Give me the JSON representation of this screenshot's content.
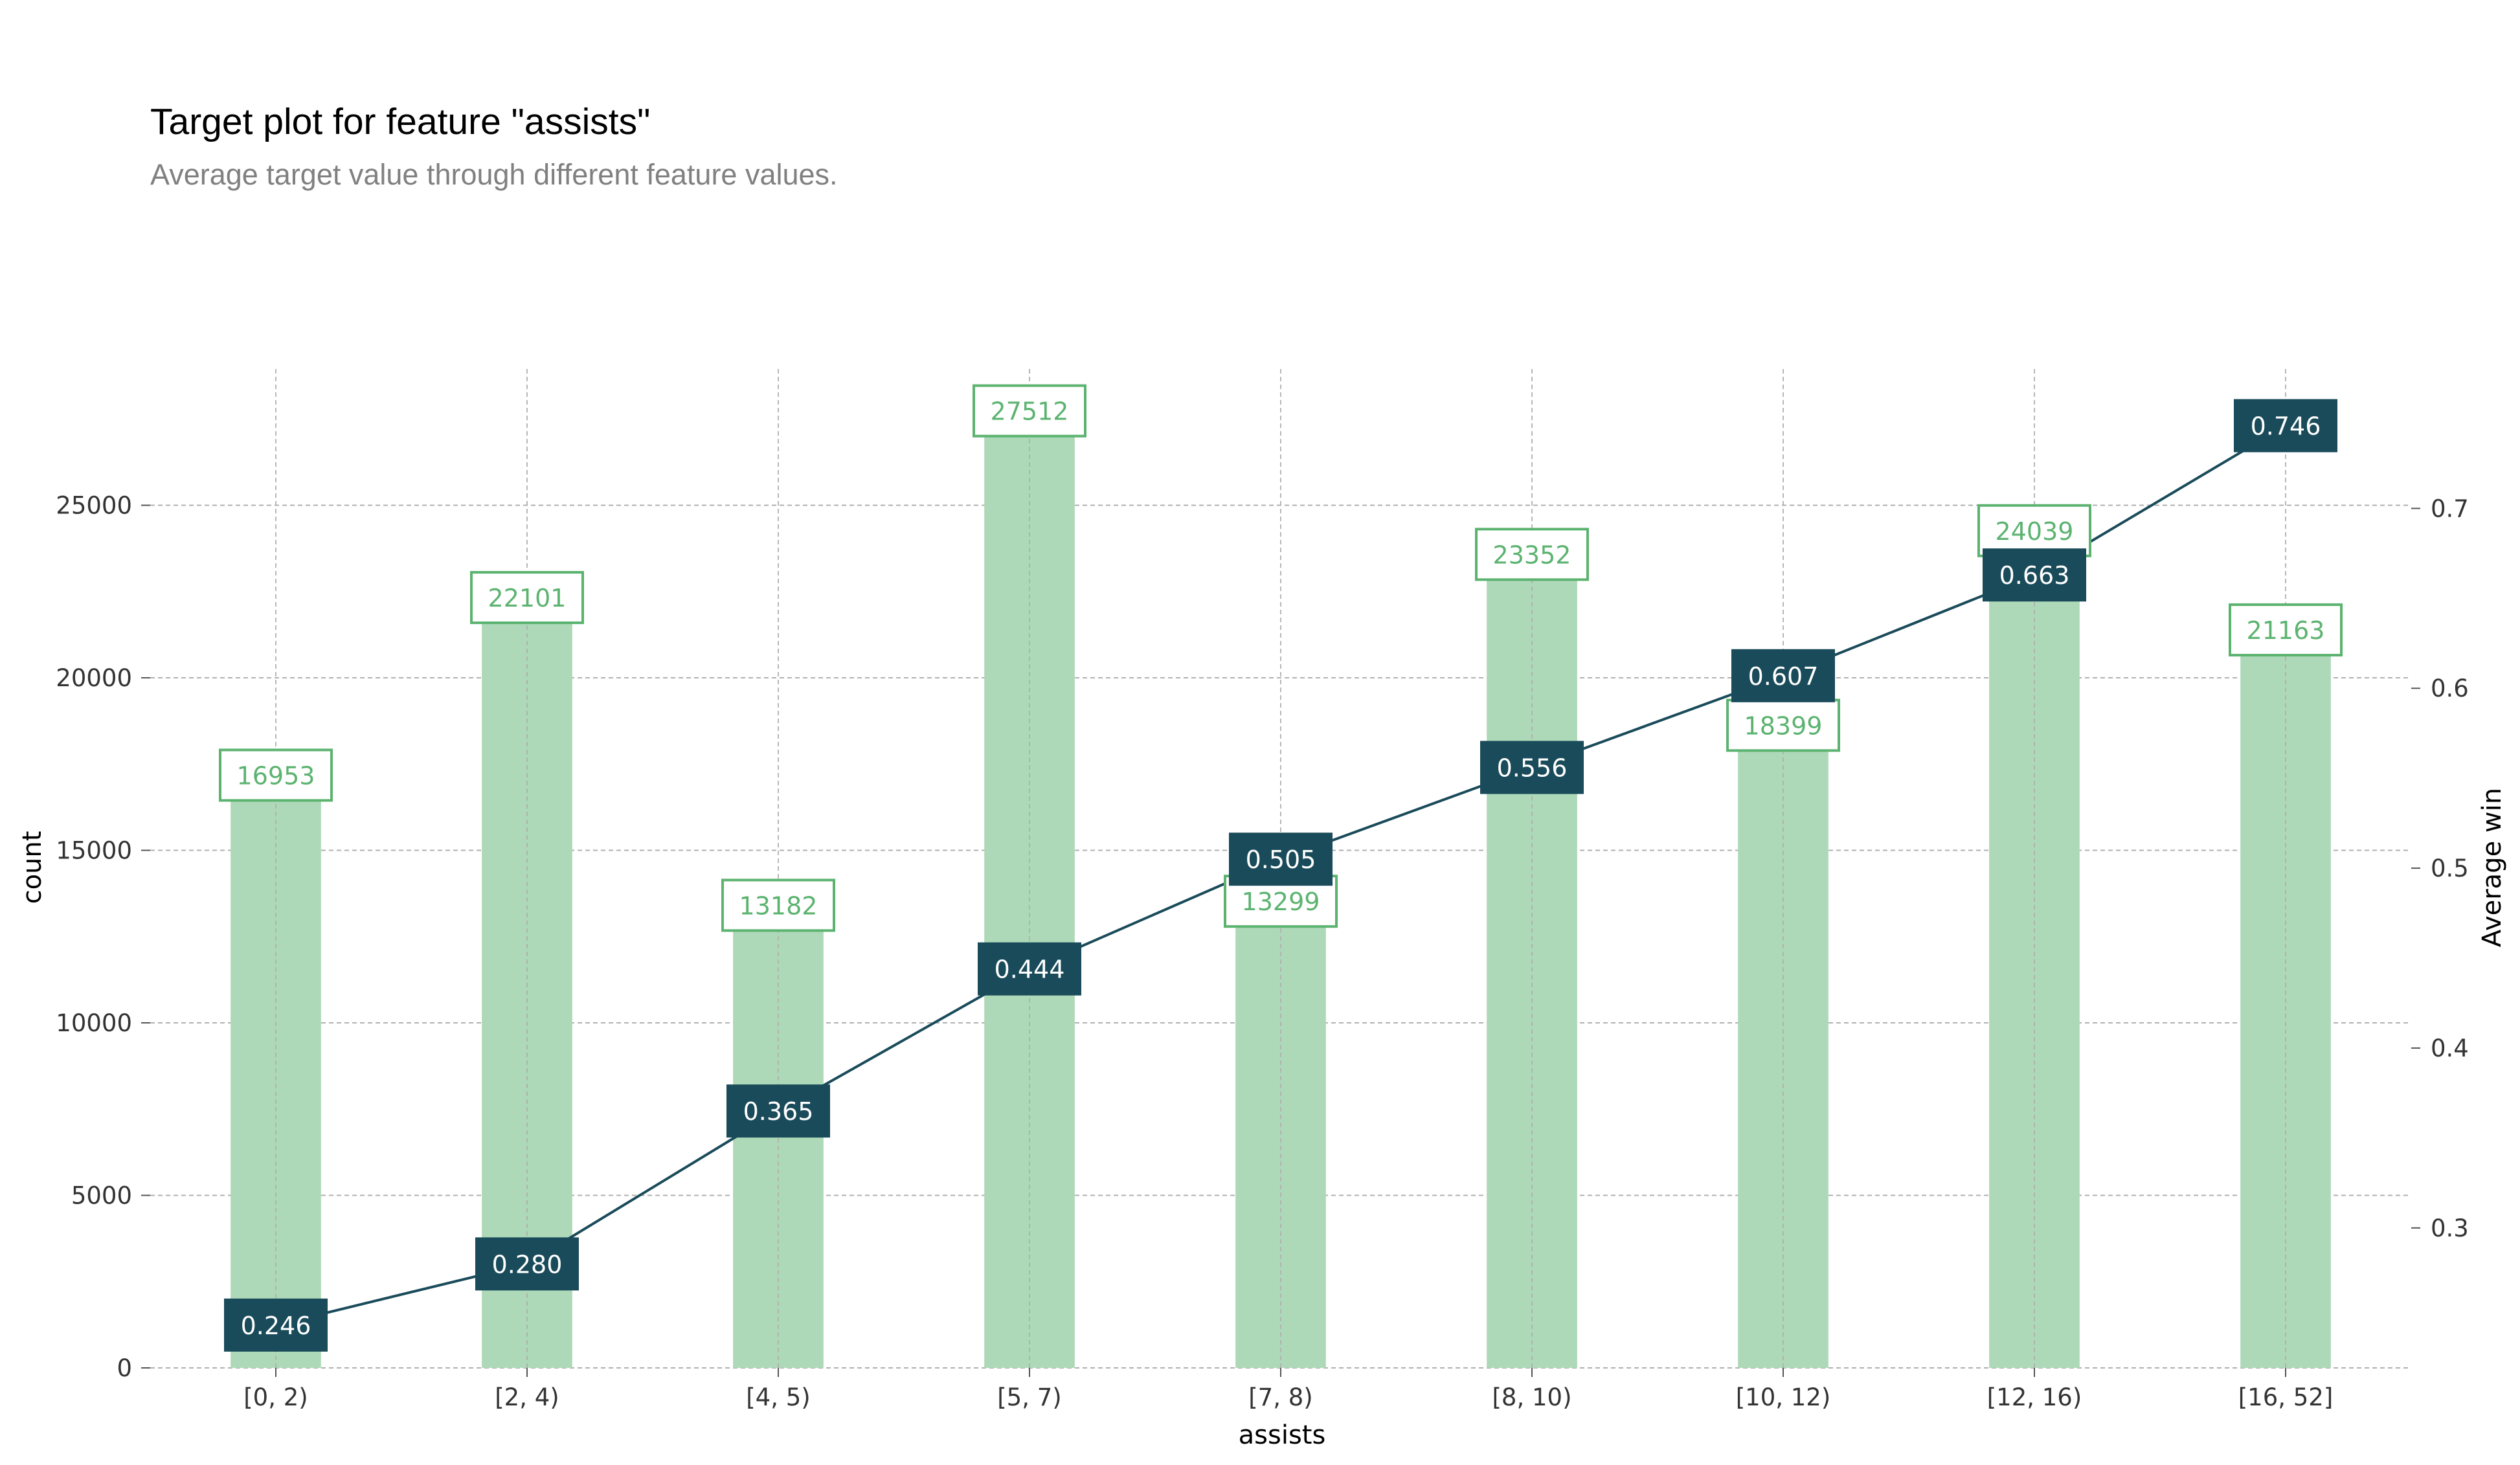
{
  "title": "Target plot for feature \"assists\"",
  "subtitle": "Average target value through different feature values.",
  "colors": {
    "bar": "#add9b8",
    "bar_label": "#5cb370",
    "line": "#1a4b5a",
    "grid": "#b0b0b0"
  },
  "chart_data": {
    "type": "bar",
    "categories": [
      "[0, 2)",
      "[2, 4)",
      "[4, 5)",
      "[5, 7)",
      "[7, 8)",
      "[8, 10)",
      "[10, 12)",
      "[12, 16)",
      "[16, 52]"
    ],
    "xlabel": "assists",
    "ylabel": "count",
    "y2label": "Average win",
    "ylim": [
      0,
      28950
    ],
    "y2lim": [
      0.2222,
      0.7775
    ],
    "yticks": [
      "0",
      "5000",
      "10000",
      "15000",
      "20000",
      "25000"
    ],
    "y2ticks": [
      "0.3",
      "0.4",
      "0.5",
      "0.6",
      "0.7"
    ],
    "grid": true,
    "series": [
      {
        "type": "bar",
        "axis": "left",
        "values": [
          16953,
          22101,
          13182,
          27512,
          13299,
          23352,
          18399,
          24039,
          21163
        ],
        "labels": [
          "16953",
          "22101",
          "13182",
          "27512",
          "13299",
          "23352",
          "18399",
          "24039",
          "21163"
        ]
      },
      {
        "type": "line",
        "axis": "right",
        "values": [
          0.246,
          0.28,
          0.365,
          0.444,
          0.505,
          0.556,
          0.607,
          0.663,
          0.746
        ],
        "labels": [
          "0.246",
          "0.280",
          "0.365",
          "0.444",
          "0.505",
          "0.556",
          "0.607",
          "0.663",
          "0.746"
        ]
      }
    ]
  }
}
